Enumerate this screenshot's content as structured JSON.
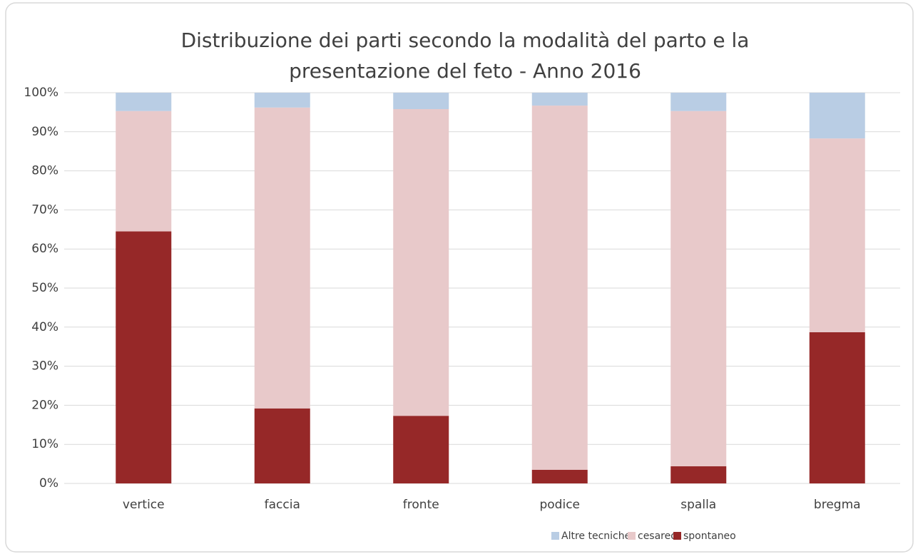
{
  "chart_data": {
    "type": "stacked_bar",
    "title": "Distribuzione dei parti secondo la modalità del parto e la",
    "subtitle": "presentazione del feto - Anno 2016",
    "categories": [
      "vertice",
      "faccia",
      "fronte",
      "podice",
      "spalla",
      "bregma"
    ],
    "series": [
      {
        "name": "Altre tecniche",
        "color": "#b9cde4",
        "values": [
          4.7,
          3.8,
          4.2,
          3.3,
          4.7,
          11.7
        ]
      },
      {
        "name": "cesareo",
        "color": "#e8c9ca",
        "values": [
          30.8,
          77.0,
          78.5,
          93.2,
          90.9,
          49.6
        ]
      },
      {
        "name": "spontaneo",
        "color": "#962828",
        "values": [
          64.5,
          19.2,
          17.3,
          3.5,
          4.4,
          38.7
        ]
      }
    ],
    "ylim": [
      0,
      100
    ],
    "yticks": [
      {
        "value": 0,
        "label": "0%"
      },
      {
        "value": 10,
        "label": "10%"
      },
      {
        "value": 20,
        "label": "20%"
      },
      {
        "value": 30,
        "label": "30%"
      },
      {
        "value": 40,
        "label": "40%"
      },
      {
        "value": 50,
        "label": "50%"
      },
      {
        "value": 60,
        "label": "60%"
      },
      {
        "value": 70,
        "label": "70%"
      },
      {
        "value": 80,
        "label": "80%"
      },
      {
        "value": 90,
        "label": "90%"
      },
      {
        "value": 100,
        "label": "100%"
      }
    ],
    "grid": true,
    "legend": "bottom"
  }
}
